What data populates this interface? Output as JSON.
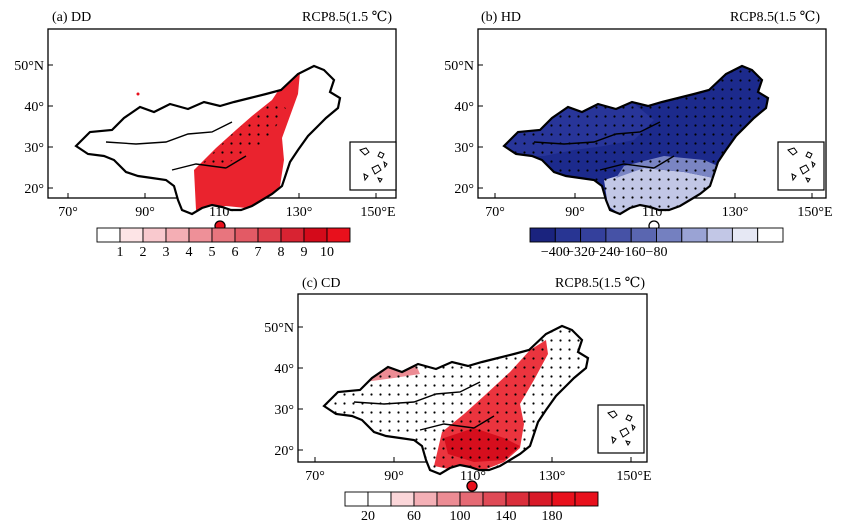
{
  "panels": [
    {
      "label": "(a) DD",
      "scenario": "RCP8.5(1.5 ℃)",
      "fill_color": "#e8101c",
      "colorbar_colors": [
        "#ffffff",
        "#fde4e6",
        "#f9c9ce",
        "#f4aeb4",
        "#ee9098",
        "#e8757e",
        "#e35a65",
        "#de3f4b",
        "#d82332",
        "#d40a1a",
        "#e8101c"
      ],
      "colorbar_labels": [
        "1",
        "2",
        "3",
        "4",
        "5",
        "6",
        "7",
        "8",
        "9",
        "10"
      ]
    },
    {
      "label": "(b) HD",
      "scenario": "RCP8.5(1.5 ℃)",
      "fill_color": "#1c2a8c",
      "colorbar_colors": [
        "#1a237e",
        "#283593",
        "#34409c",
        "#4652a6",
        "#5a66b0",
        "#7480c0",
        "#9aa3d4",
        "#c2c7e6",
        "#e6e8f4",
        "#ffffff"
      ],
      "colorbar_labels": [
        "−400",
        "−320",
        "−240",
        "−160",
        "−80"
      ]
    },
    {
      "label": "(c) CD",
      "scenario": "RCP8.5(1.5 ℃)",
      "fill_color": "#e8101c",
      "colorbar_colors": [
        "#ffffff",
        "#ffffff",
        "#fbd6d9",
        "#f4b0b6",
        "#ec8c94",
        "#e56a74",
        "#df4a56",
        "#da2e3b",
        "#d81a28",
        "#e8101c",
        "#e8101c"
      ],
      "colorbar_labels": [
        "20",
        "60",
        "100",
        "140",
        "180"
      ]
    }
  ],
  "map_axes": {
    "lon_ticks": [
      "70°",
      "90°",
      "110°",
      "130°",
      "150°E"
    ],
    "lat_ticks": [
      "50°N",
      "40°",
      "30°",
      "20°"
    ]
  },
  "colors": {
    "dd_red": "#e8101c",
    "hd_blue": "#1c2a8c",
    "outline": "#000000"
  }
}
